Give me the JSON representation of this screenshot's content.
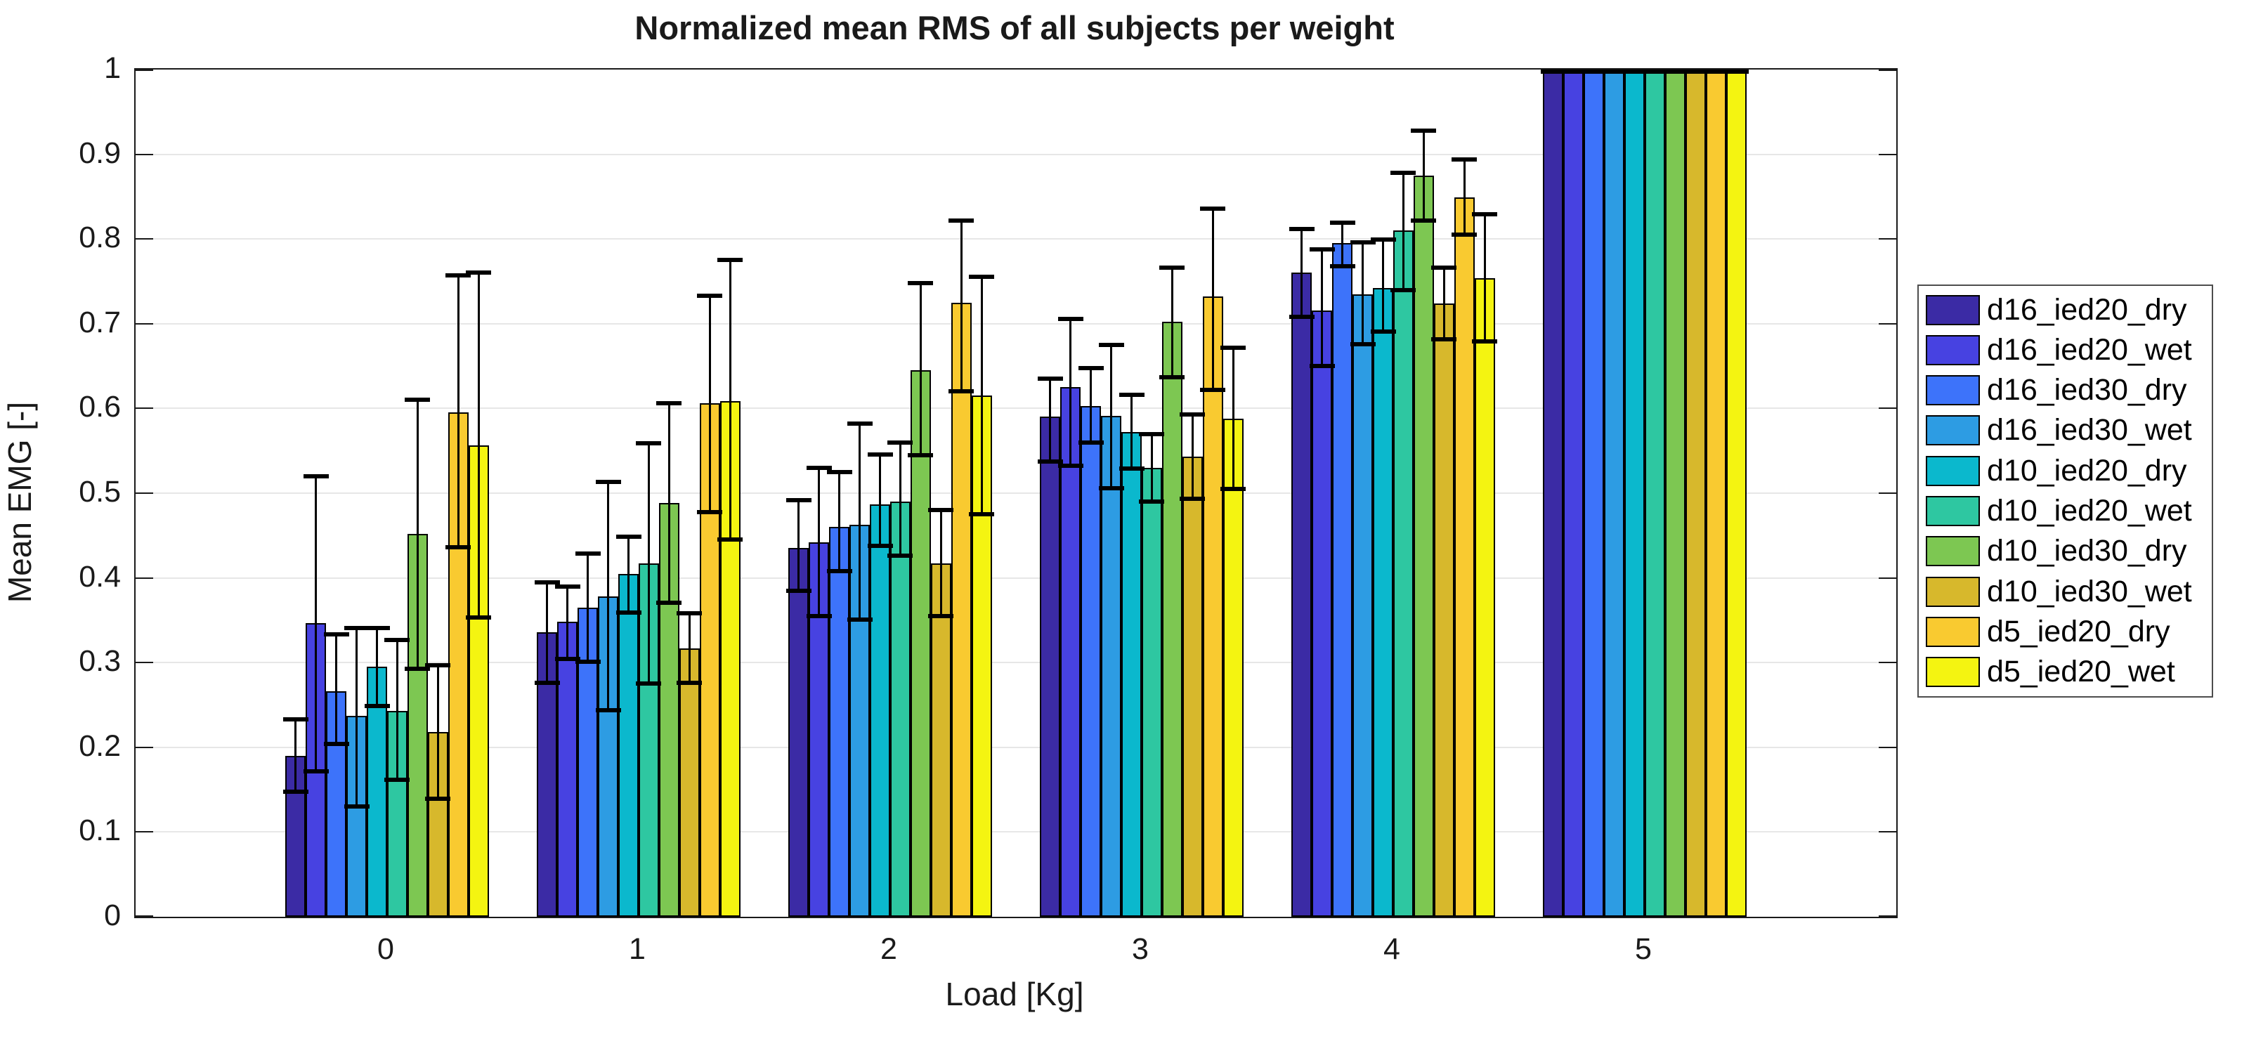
{
  "title": "Normalized mean RMS of all subjects per weight",
  "axes": {
    "xlabel": "Load [Kg]",
    "ylabel": "Mean EMG [-]",
    "ytick_labels": [
      "0",
      "0.1",
      "0.2",
      "0.3",
      "0.4",
      "0.5",
      "0.6",
      "0.7",
      "0.8",
      "0.9",
      "1"
    ],
    "xtick_labels": [
      "0",
      "1",
      "2",
      "3",
      "4",
      "5"
    ]
  },
  "chart_data": {
    "type": "bar",
    "title": "Normalized mean RMS of all subjects per weight",
    "xlabel": "Load [Kg]",
    "ylabel": "Mean EMG [-]",
    "categories": [
      0,
      1,
      2,
      3,
      4,
      5
    ],
    "ylim": [
      0,
      1
    ],
    "xlim": [
      -1,
      6
    ],
    "yticks": [
      0,
      0.1,
      0.2,
      0.3,
      0.4,
      0.5,
      0.6,
      0.7,
      0.8,
      0.9,
      1
    ],
    "grid": "y-only",
    "legend_position": "right-outside",
    "bar_group_width": 0.81,
    "error_bars": "symmetric caps, absolute lo/hi whisker endpoints",
    "series": [
      {
        "name": "d16_ied20_dry",
        "color": "#3b2ba5",
        "values": [
          0.19,
          0.336,
          0.435,
          0.59,
          0.76,
          1.0
        ],
        "err_low": [
          0.148,
          0.276,
          0.385,
          0.537,
          0.708,
          1.0
        ],
        "err_high": [
          0.233,
          0.395,
          0.492,
          0.635,
          0.812,
          1.0
        ]
      },
      {
        "name": "d16_ied20_wet",
        "color": "#4742e1",
        "values": [
          0.347,
          0.348,
          0.442,
          0.625,
          0.716,
          1.0
        ],
        "err_low": [
          0.172,
          0.304,
          0.355,
          0.532,
          0.65,
          1.0
        ],
        "err_high": [
          0.52,
          0.39,
          0.53,
          0.706,
          0.788,
          1.0
        ]
      },
      {
        "name": "d16_ied30_dry",
        "color": "#3d73fa",
        "values": [
          0.266,
          0.365,
          0.46,
          0.603,
          0.795,
          1.0
        ],
        "err_low": [
          0.204,
          0.301,
          0.408,
          0.56,
          0.768,
          1.0
        ],
        "err_high": [
          0.333,
          0.429,
          0.525,
          0.648,
          0.819,
          1.0
        ]
      },
      {
        "name": "d16_ied30_wet",
        "color": "#2d9ce3",
        "values": [
          0.237,
          0.378,
          0.463,
          0.591,
          0.735,
          1.0
        ],
        "err_low": [
          0.13,
          0.244,
          0.351,
          0.506,
          0.676,
          1.0
        ],
        "err_high": [
          0.341,
          0.513,
          0.582,
          0.675,
          0.796,
          1.0
        ]
      },
      {
        "name": "d10_ied20_dry",
        "color": "#0bb8cd",
        "values": [
          0.295,
          0.405,
          0.487,
          0.572,
          0.742,
          1.0
        ],
        "err_low": [
          0.249,
          0.359,
          0.438,
          0.529,
          0.691,
          1.0
        ],
        "err_high": [
          0.341,
          0.449,
          0.546,
          0.616,
          0.799,
          1.0
        ]
      },
      {
        "name": "d10_ied20_wet",
        "color": "#2ec7a1",
        "values": [
          0.243,
          0.417,
          0.49,
          0.53,
          0.81,
          1.0
        ],
        "err_low": [
          0.162,
          0.275,
          0.426,
          0.49,
          0.74,
          1.0
        ],
        "err_high": [
          0.327,
          0.559,
          0.56,
          0.57,
          0.878,
          1.0
        ]
      },
      {
        "name": "d10_ied30_dry",
        "color": "#7dc752",
        "values": [
          0.452,
          0.488,
          0.645,
          0.702,
          0.875,
          1.0
        ],
        "err_low": [
          0.293,
          0.371,
          0.545,
          0.637,
          0.822,
          1.0
        ],
        "err_high": [
          0.61,
          0.606,
          0.748,
          0.766,
          0.928,
          1.0
        ]
      },
      {
        "name": "d10_ied30_wet",
        "color": "#d7b82c",
        "values": [
          0.218,
          0.317,
          0.417,
          0.543,
          0.724,
          1.0
        ],
        "err_low": [
          0.139,
          0.276,
          0.355,
          0.493,
          0.682,
          1.0
        ],
        "err_high": [
          0.297,
          0.358,
          0.48,
          0.593,
          0.766,
          1.0
        ]
      },
      {
        "name": "d5_ied20_dry",
        "color": "#f9ca30",
        "values": [
          0.595,
          0.606,
          0.725,
          0.732,
          0.849,
          1.0
        ],
        "err_low": [
          0.436,
          0.478,
          0.62,
          0.622,
          0.805,
          1.0
        ],
        "err_high": [
          0.757,
          0.733,
          0.822,
          0.836,
          0.894,
          1.0
        ]
      },
      {
        "name": "d5_ied20_wet",
        "color": "#f4f411",
        "values": [
          0.556,
          0.609,
          0.615,
          0.588,
          0.754,
          1.0
        ],
        "err_low": [
          0.353,
          0.445,
          0.475,
          0.505,
          0.679,
          1.0
        ],
        "err_high": [
          0.76,
          0.775,
          0.755,
          0.672,
          0.829,
          1.0
        ]
      }
    ]
  },
  "style": {
    "grid_color": "#e7e7e7",
    "axis_color": "#1a1a1a",
    "bar_edge_color": "#000000",
    "errorbar_color": "#000000",
    "background": "#ffffff"
  }
}
